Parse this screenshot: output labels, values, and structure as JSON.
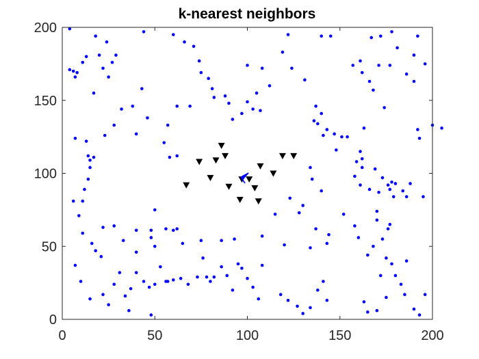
{
  "chart_data": {
    "type": "scatter",
    "title": "k-nearest neighbors",
    "xlabel": "",
    "ylabel": "",
    "xlim": [
      0,
      200
    ],
    "ylim": [
      0,
      200
    ],
    "xticks": [
      0,
      50,
      100,
      150,
      200
    ],
    "yticks": [
      0,
      50,
      100,
      150,
      200
    ],
    "grid": false,
    "box": true,
    "series": [
      {
        "marker": "dot",
        "color": "#0000ff",
        "points": [
          [
            4,
            199
          ],
          [
            18,
            194
          ],
          [
            24,
            190
          ],
          [
            44,
            197
          ],
          [
            60,
            195
          ],
          [
            66,
            190
          ],
          [
            71,
            187
          ],
          [
            122,
            195
          ],
          [
            145,
            194
          ],
          [
            172,
            194
          ],
          [
            178,
            197
          ],
          [
            167,
            193
          ],
          [
            192,
            194
          ],
          [
            4,
            171
          ],
          [
            6,
            170
          ],
          [
            7,
            166
          ],
          [
            8,
            169
          ],
          [
            11,
            176
          ],
          [
            13,
            180
          ],
          [
            20,
            181
          ],
          [
            22,
            172
          ],
          [
            25,
            166
          ],
          [
            27,
            176
          ],
          [
            29,
            181
          ],
          [
            43,
            158
          ],
          [
            32,
            144
          ],
          [
            28,
            133
          ],
          [
            23,
            126
          ],
          [
            38,
            146
          ],
          [
            40,
            127
          ],
          [
            46,
            138
          ],
          [
            17,
            155
          ],
          [
            15,
            109
          ],
          [
            14,
            112
          ],
          [
            13,
            122
          ],
          [
            11,
            81
          ],
          [
            12,
            89
          ],
          [
            14,
            96
          ],
          [
            15,
            104
          ],
          [
            17,
            111
          ],
          [
            7,
            124
          ],
          [
            6,
            81
          ],
          [
            9,
            71
          ],
          [
            55,
            121
          ],
          [
            58,
            111
          ],
          [
            62,
            112
          ],
          [
            57,
            133
          ],
          [
            62,
            146
          ],
          [
            69,
            146
          ],
          [
            74,
            177
          ],
          [
            75,
            169
          ],
          [
            79,
            165
          ],
          [
            81,
            158
          ],
          [
            82,
            152
          ],
          [
            88,
            153
          ],
          [
            90,
            148
          ],
          [
            92,
            137
          ],
          [
            97,
            141
          ],
          [
            100,
            149
          ],
          [
            103,
            144
          ],
          [
            105,
            155
          ],
          [
            107,
            143
          ],
          [
            100,
            174
          ],
          [
            108,
            172
          ],
          [
            112,
            160
          ],
          [
            119,
            183
          ],
          [
            124,
            172
          ],
          [
            131,
            164
          ],
          [
            140,
            194
          ],
          [
            157,
            174
          ],
          [
            161,
            177
          ],
          [
            162,
            169
          ],
          [
            166,
            163
          ],
          [
            168,
            157
          ],
          [
            171,
            174
          ],
          [
            177,
            174
          ],
          [
            181,
            186
          ],
          [
            190,
            181
          ],
          [
            196,
            175
          ],
          [
            186,
            168
          ],
          [
            190,
            163
          ],
          [
            205,
            131
          ],
          [
            200,
            133
          ],
          [
            192,
            130
          ],
          [
            193,
            124
          ],
          [
            174,
            145
          ],
          [
            163,
            131
          ],
          [
            161,
            115
          ],
          [
            162,
            110
          ],
          [
            169,
            103
          ],
          [
            173,
            97
          ],
          [
            178,
            94
          ],
          [
            180,
            93
          ],
          [
            179,
            84
          ],
          [
            177,
            89
          ],
          [
            176,
            92
          ],
          [
            170,
            74
          ],
          [
            184,
            88
          ],
          [
            188,
            93
          ],
          [
            186,
            84
          ],
          [
            195,
            84
          ],
          [
            137,
            146
          ],
          [
            140,
            141
          ],
          [
            143,
            130
          ],
          [
            147,
            127
          ],
          [
            151,
            125
          ],
          [
            148,
            116
          ],
          [
            154,
            125
          ],
          [
            159,
            108
          ],
          [
            162,
            104
          ],
          [
            158,
            98
          ],
          [
            161,
            92
          ],
          [
            166,
            89
          ],
          [
            171,
            87
          ],
          [
            136,
            136
          ],
          [
            138,
            134
          ],
          [
            141,
            126
          ],
          [
            134,
            104
          ],
          [
            135,
            96
          ],
          [
            140,
            88
          ],
          [
            130,
            78
          ],
          [
            128,
            73
          ],
          [
            123,
            83
          ],
          [
            115,
            72
          ],
          [
            137,
            62
          ],
          [
            143,
            52
          ],
          [
            144,
            58
          ],
          [
            134,
            49
          ],
          [
            120,
            51
          ],
          [
            108,
            57
          ],
          [
            93,
            55
          ],
          [
            86,
            54
          ],
          [
            75,
            54
          ],
          [
            65,
            52
          ],
          [
            62,
            62
          ],
          [
            56,
            62
          ],
          [
            50,
            75
          ],
          [
            48,
            61
          ],
          [
            48,
            56
          ],
          [
            50,
            50
          ],
          [
            40,
            61
          ],
          [
            33,
            54
          ],
          [
            28,
            64
          ],
          [
            22,
            63
          ],
          [
            21,
            43
          ],
          [
            18,
            47
          ],
          [
            16,
            52
          ],
          [
            11,
            59
          ],
          [
            7,
            37
          ],
          [
            10,
            26
          ],
          [
            15,
            14
          ],
          [
            22,
            17
          ],
          [
            25,
            10
          ],
          [
            28,
            24
          ],
          [
            31,
            32
          ],
          [
            34,
            16
          ],
          [
            37,
            21
          ],
          [
            40,
            32
          ],
          [
            44,
            26
          ],
          [
            47,
            22
          ],
          [
            50,
            24
          ],
          [
            56,
            26
          ],
          [
            60,
            27
          ],
          [
            64,
            28
          ],
          [
            68,
            24
          ],
          [
            73,
            29
          ],
          [
            76,
            42
          ],
          [
            78,
            29
          ],
          [
            80,
            26
          ],
          [
            82,
            29
          ],
          [
            86,
            36
          ],
          [
            89,
            30
          ],
          [
            92,
            20
          ],
          [
            95,
            38
          ],
          [
            97,
            35
          ],
          [
            100,
            28
          ],
          [
            103,
            22
          ],
          [
            106,
            14
          ],
          [
            108,
            37
          ],
          [
            118,
            17
          ],
          [
            122,
            13
          ],
          [
            127,
            9
          ],
          [
            130,
            4
          ],
          [
            134,
            8
          ],
          [
            138,
            20
          ],
          [
            141,
            26
          ],
          [
            143,
            13
          ],
          [
            152,
            72
          ],
          [
            158,
            64
          ],
          [
            160,
            56
          ],
          [
            165,
            44
          ],
          [
            168,
            50
          ],
          [
            170,
            68
          ],
          [
            173,
            55
          ],
          [
            175,
            42
          ],
          [
            178,
            38
          ],
          [
            180,
            30
          ],
          [
            183,
            24
          ],
          [
            185,
            17
          ],
          [
            163,
            12
          ],
          [
            165,
            5
          ],
          [
            170,
            6
          ],
          [
            175,
            15
          ],
          [
            177,
            65
          ],
          [
            176,
            62
          ],
          [
            172,
            30
          ],
          [
            186,
            40
          ],
          [
            190,
            7
          ],
          [
            193,
            3
          ],
          [
            196,
            17
          ],
          [
            60,
            61
          ],
          [
            53,
            36
          ],
          [
            40,
            46
          ],
          [
            36,
            6
          ],
          [
            48,
            3
          ],
          [
            57,
            26
          ]
        ]
      },
      {
        "marker": "triangle-down",
        "color": "#000000",
        "points": [
          [
            67,
            92
          ],
          [
            74,
            108
          ],
          [
            80,
            97
          ],
          [
            83,
            109
          ],
          [
            86,
            119
          ],
          [
            88,
            112
          ],
          [
            90,
            91
          ],
          [
            96,
            82
          ],
          [
            97,
            96
          ],
          [
            101,
            96
          ],
          [
            104,
            90
          ],
          [
            106,
            81
          ],
          [
            107,
            105
          ],
          [
            114,
            100
          ],
          [
            119,
            112
          ],
          [
            125,
            112
          ]
        ]
      },
      {
        "marker": "star",
        "color": "#0000ff",
        "points": [
          [
            98,
            97
          ]
        ]
      }
    ]
  }
}
